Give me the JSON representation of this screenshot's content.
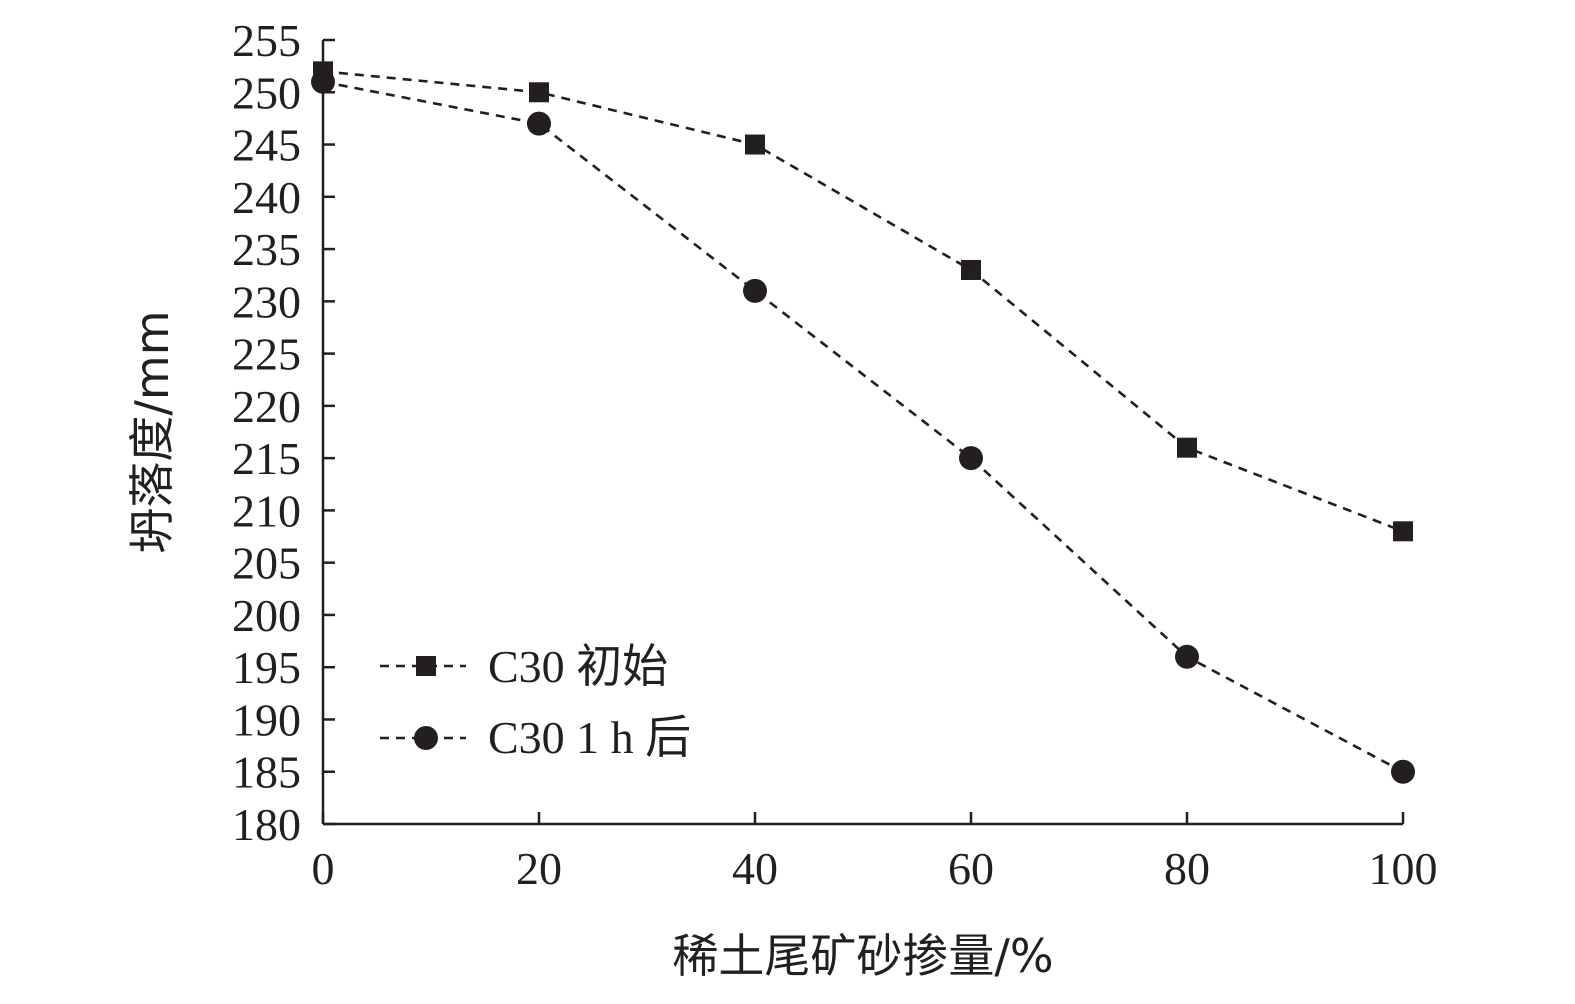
{
  "chart_data": {
    "type": "line",
    "xlabel": "稀土尾矿砂掺量/%",
    "ylabel": "坍落度/mm",
    "xlim": [
      0,
      100
    ],
    "ylim": [
      180,
      255
    ],
    "x": [
      0,
      20,
      40,
      60,
      80,
      100
    ],
    "x_ticks": [
      0,
      20,
      40,
      60,
      80,
      100
    ],
    "y_ticks": [
      180,
      185,
      190,
      195,
      200,
      205,
      210,
      215,
      220,
      225,
      230,
      235,
      240,
      245,
      250,
      255
    ],
    "grid": false,
    "legend_position": "bottom-left",
    "series": [
      {
        "name": "C30  初始",
        "marker": "square",
        "color": "#231f20",
        "line_style": "dashed",
        "values": [
          252,
          250,
          245,
          233,
          216,
          208
        ]
      },
      {
        "name": "C30 1 h 后",
        "marker": "circle",
        "color": "#231f20",
        "line_style": "dashed",
        "values": [
          251,
          247,
          231,
          215,
          196,
          185
        ]
      }
    ]
  }
}
